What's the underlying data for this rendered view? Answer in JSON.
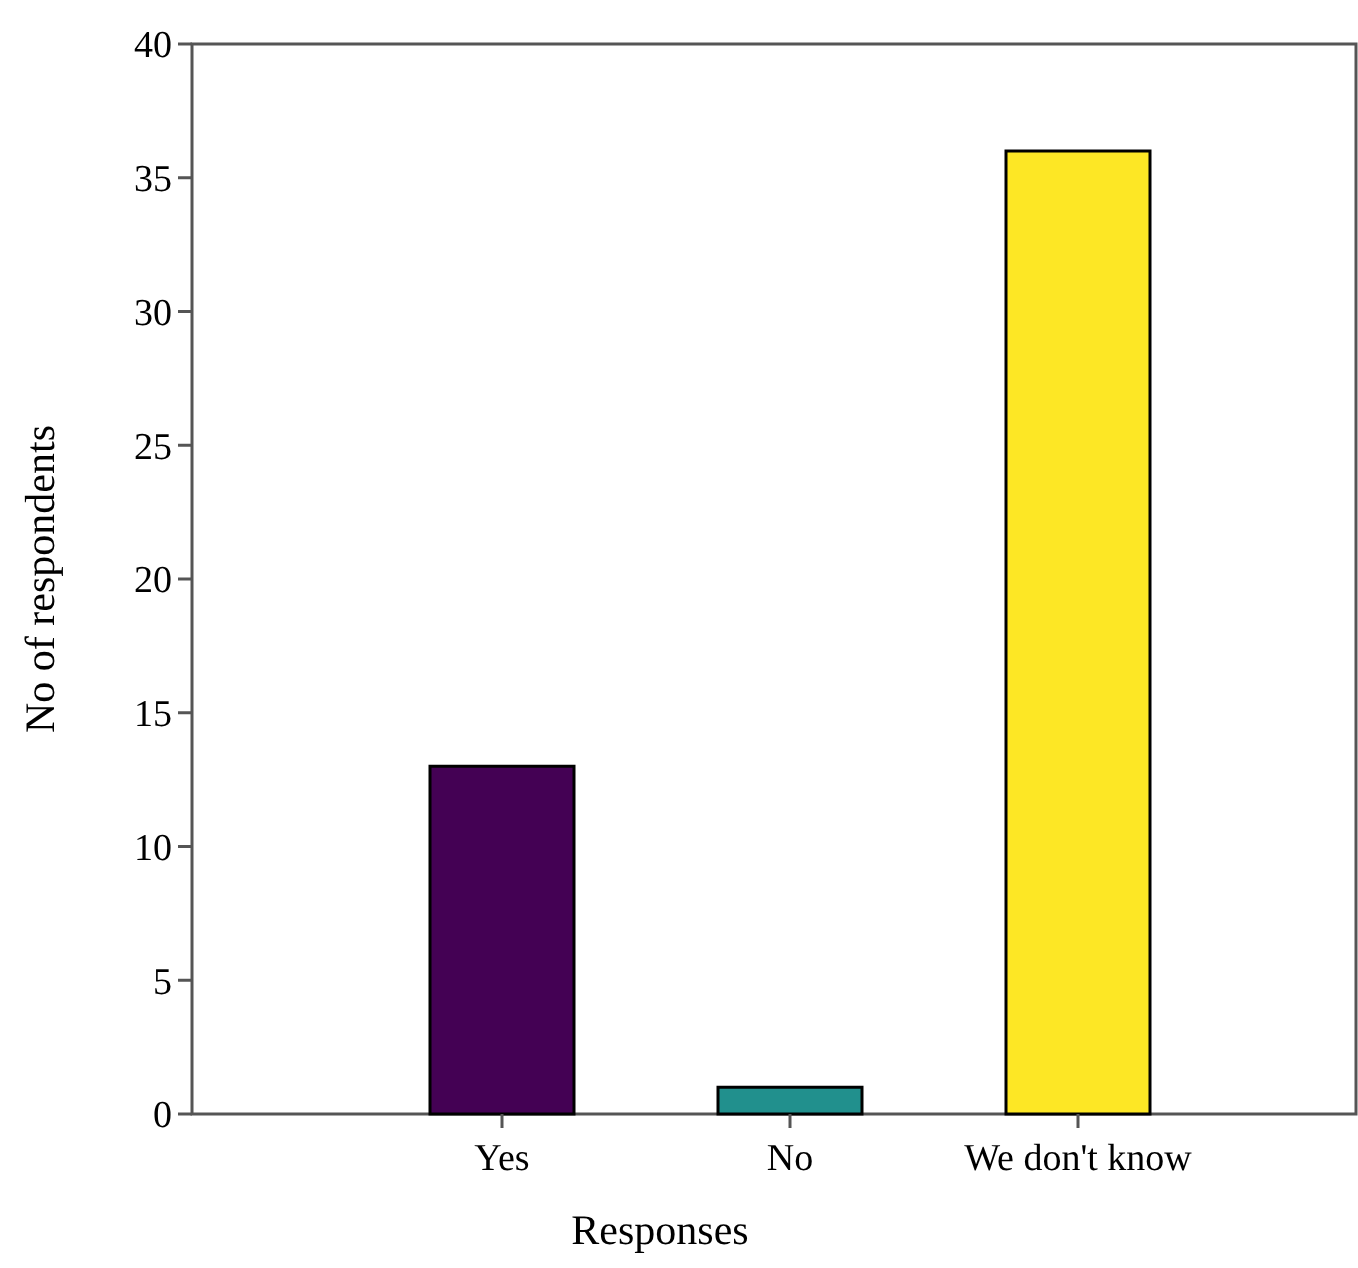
{
  "chart_data": {
    "type": "bar",
    "xlabel": "Responses",
    "ylabel": "No of respondents",
    "categories": [
      "Yes",
      "No",
      "We don't know"
    ],
    "values": [
      13,
      1,
      36
    ],
    "colors": [
      "#440154",
      "#21908d",
      "#fde725"
    ],
    "ylim": [
      0,
      40
    ],
    "yticks": [
      0,
      5,
      10,
      15,
      20,
      25,
      30,
      35,
      40
    ],
    "grid": false
  }
}
